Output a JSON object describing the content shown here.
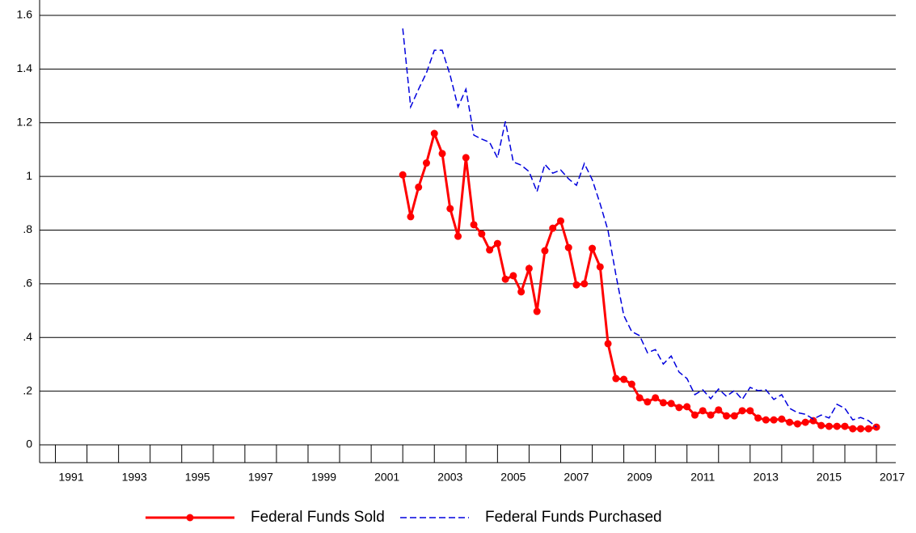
{
  "chart_data": {
    "type": "line",
    "x": [
      2001.5,
      2001.75,
      2002,
      2002.25,
      2002.5,
      2002.75,
      2003,
      2003.25,
      2003.5,
      2003.75,
      2004,
      2004.25,
      2004.5,
      2004.75,
      2005,
      2005.25,
      2005.5,
      2005.75,
      2006,
      2006.25,
      2006.5,
      2006.75,
      2007,
      2007.25,
      2007.5,
      2007.75,
      2008,
      2008.25,
      2008.5,
      2008.75,
      2009,
      2009.25,
      2009.5,
      2009.75,
      2010,
      2010.25,
      2010.5,
      2010.75,
      2011,
      2011.25,
      2011.5,
      2011.75,
      2012,
      2012.25,
      2012.5,
      2012.75,
      2013,
      2013.25,
      2013.5,
      2013.75,
      2014,
      2014.25,
      2014.5,
      2014.75,
      2015,
      2015.25,
      2015.5,
      2015.75,
      2016,
      2016.25,
      2016.5
    ],
    "series": [
      {
        "name": "Federal Funds Sold",
        "color": "#ff0000",
        "dash": false,
        "markers": true,
        "values": [
          1.006,
          0.85,
          0.96,
          1.05,
          1.16,
          1.085,
          0.88,
          0.777,
          1.07,
          0.82,
          0.786,
          0.726,
          0.75,
          0.617,
          0.63,
          0.57,
          0.657,
          0.497,
          0.723,
          0.807,
          0.834,
          0.735,
          0.596,
          0.6,
          0.732,
          0.663,
          0.377,
          0.247,
          0.244,
          0.226,
          0.175,
          0.16,
          0.175,
          0.157,
          0.154,
          0.139,
          0.142,
          0.111,
          0.127,
          0.111,
          0.13,
          0.108,
          0.108,
          0.127,
          0.127,
          0.1,
          0.093,
          0.093,
          0.096,
          0.084,
          0.078,
          0.084,
          0.09,
          0.072,
          0.069,
          0.069,
          0.069,
          0.06,
          0.06,
          0.06,
          0.066
        ]
      },
      {
        "name": "Federal Funds Purchased",
        "color": "#0000dd",
        "dash": true,
        "markers": false,
        "values": [
          1.551,
          1.259,
          1.325,
          1.386,
          1.47,
          1.47,
          1.377,
          1.259,
          1.325,
          1.154,
          1.139,
          1.127,
          1.069,
          1.205,
          1.054,
          1.042,
          1.018,
          0.943,
          1.045,
          1.012,
          1.024,
          0.991,
          0.967,
          1.048,
          0.988,
          0.898,
          0.798,
          0.633,
          0.482,
          0.422,
          0.407,
          0.343,
          0.355,
          0.301,
          0.331,
          0.271,
          0.247,
          0.187,
          0.205,
          0.172,
          0.208,
          0.181,
          0.202,
          0.169,
          0.214,
          0.202,
          0.205,
          0.169,
          0.187,
          0.136,
          0.12,
          0.114,
          0.096,
          0.111,
          0.1,
          0.151,
          0.136,
          0.093,
          0.102,
          0.09,
          0.066
        ]
      }
    ],
    "xlim": [
      1990,
      2017
    ],
    "xticks": [
      1991,
      1993,
      1995,
      1997,
      1999,
      2001,
      2003,
      2005,
      2007,
      2009,
      2011,
      2013,
      2015,
      2017
    ],
    "ylim": [
      0,
      1.6
    ],
    "yticks": [
      0,
      {
        "value": 0.2,
        "label": ".2"
      },
      {
        "value": 0.4,
        "label": ".4"
      },
      {
        "value": 0.6,
        "label": ".6"
      },
      {
        "value": 0.8,
        "label": ".8"
      },
      1,
      1.2,
      1.4,
      1.6
    ],
    "grid": true
  }
}
